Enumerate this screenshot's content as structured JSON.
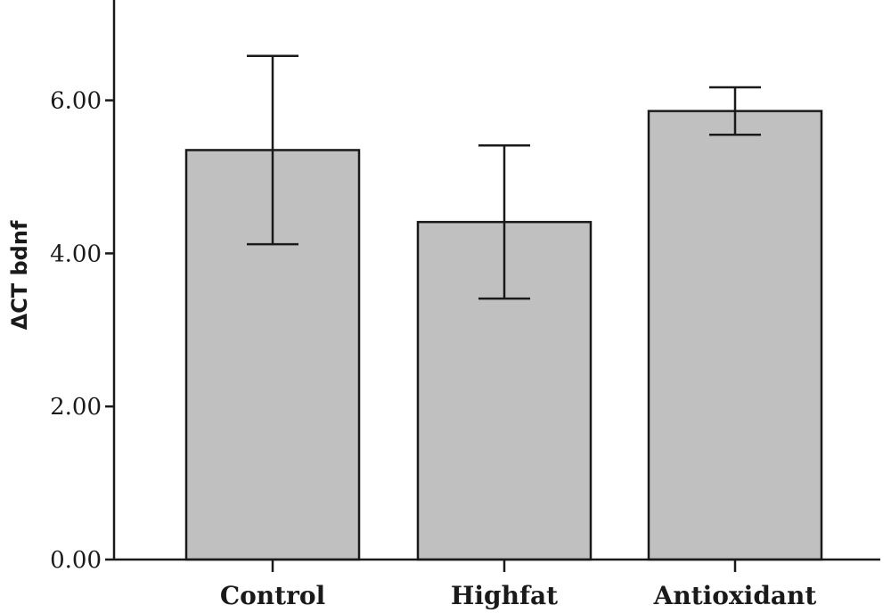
{
  "chart_data": {
    "type": "bar",
    "categories": [
      "Control",
      "Highfat",
      "Antioxidant"
    ],
    "values": [
      5.35,
      4.41,
      5.86
    ],
    "error": [
      1.23,
      1.0,
      0.31
    ],
    "ylabel": "ΔCT bdnf",
    "xlabel": "",
    "ylim": [
      0,
      7.3
    ],
    "yticks": [
      0,
      2,
      4,
      6
    ],
    "ytick_labels": [
      "0.00",
      "2.00",
      "4.00",
      "6.00"
    ],
    "grid": false,
    "bar_color": "#c0c0c0"
  }
}
